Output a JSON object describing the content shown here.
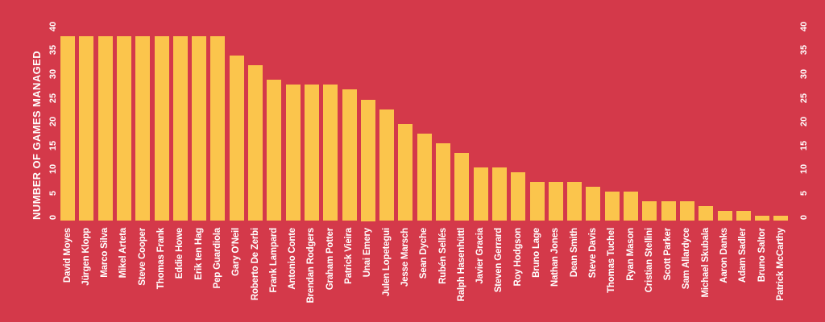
{
  "chart_data": {
    "type": "bar",
    "title": "",
    "ylabel": "NUMBER OF GAMES MANAGED",
    "xlabel": "",
    "categories": [
      "David Moyes",
      "Jürgen Klopp",
      "Marco Silva",
      "Mikel Arteta",
      "Steve Cooper",
      "Thomas Frank",
      "Eddie Howe",
      "Erik ten Hag",
      "Pep Guardiola",
      "Gary O'Neil",
      "Roberto De Zerbi",
      "Frank Lampard",
      "Antonio Conte",
      "Brendan Rodgers",
      "Graham Potter",
      "Patrick Vieira",
      "Unai Emery",
      "Julen Lopetegui",
      "Jesse Marsch",
      "Sean Dyche",
      "Rubén Sellés",
      "Ralph Hasenhüttl",
      "Javier Gracia",
      "Steven Gerrard",
      "Roy Hodgson",
      "Bruno Lage",
      "Nathan Jones",
      "Dean Smith",
      "Steve Davis",
      "Thomas Tuchel",
      "Ryan Mason",
      "Cristian Stellini",
      "Scott Parker",
      "Sam Allardyce",
      "Michael Skubala",
      "Aaron Danks",
      "Adam Sadler",
      "Bruno Saltor",
      "Patrick McCarthy"
    ],
    "values": [
      38,
      38,
      38,
      38,
      38,
      38,
      38,
      38,
      38,
      34,
      32,
      29,
      28,
      28,
      28,
      27,
      25,
      23,
      20,
      18,
      16,
      14,
      11,
      11,
      10,
      8,
      8,
      8,
      7,
      6,
      6,
      4,
      4,
      4,
      3,
      2,
      2,
      1,
      1
    ],
    "ylim": [
      0,
      40
    ],
    "yticks": [
      0,
      5,
      10,
      15,
      20,
      25,
      30,
      35,
      40
    ],
    "yticks_on_both_sides": true,
    "grid": false,
    "legend": "none",
    "colors": {
      "background": "#d4394a",
      "bar": "#fbc54c",
      "text": "#ffffff"
    }
  }
}
